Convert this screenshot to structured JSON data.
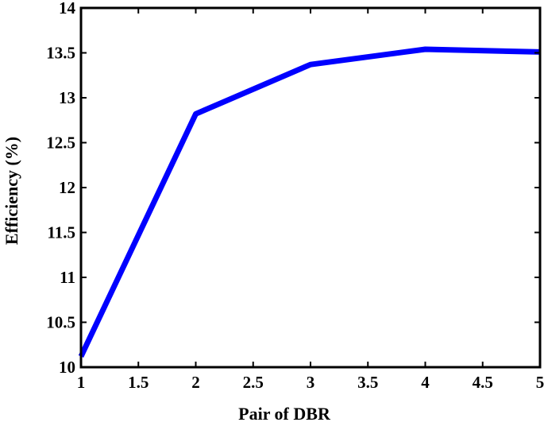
{
  "chart_data": {
    "type": "line",
    "title": "",
    "xlabel": "Pair of DBR",
    "ylabel": "Efficiency (%)",
    "xlim": [
      1,
      5
    ],
    "ylim": [
      10,
      14
    ],
    "xticks": [
      1,
      1.5,
      2,
      2.5,
      3,
      3.5,
      4,
      4.5,
      5
    ],
    "xtick_labels": [
      "1",
      "1.5",
      "2",
      "2.5",
      "3",
      "3.5",
      "4",
      "4.5",
      "5"
    ],
    "yticks": [
      10,
      10.5,
      11,
      11.5,
      12,
      12.5,
      13,
      13.5,
      14
    ],
    "ytick_labels": [
      "10",
      "10.5",
      "11",
      "11.5",
      "12",
      "12.5",
      "13",
      "13.5",
      "14"
    ],
    "grid": false,
    "series": [
      {
        "color": "#0000ff",
        "x": [
          1,
          2,
          3,
          4,
          5
        ],
        "y": [
          10.12,
          12.82,
          13.37,
          13.54,
          13.51
        ]
      }
    ]
  }
}
